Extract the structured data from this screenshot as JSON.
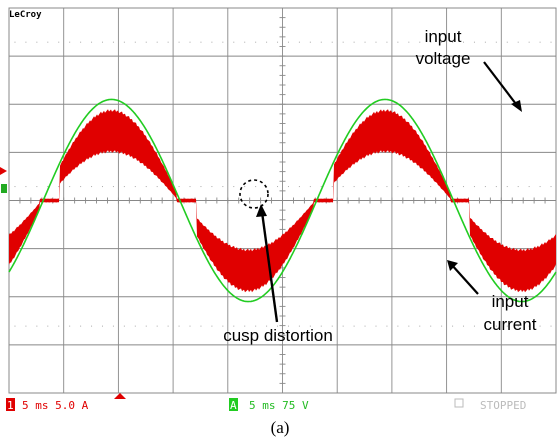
{
  "brand": "LeCroy",
  "caption": "(a)",
  "annotations": {
    "input_voltage": [
      "input",
      "voltage"
    ],
    "input_current": [
      "input",
      "current"
    ],
    "cusp": "cusp distortion"
  },
  "status": {
    "ch1_marker": "1",
    "ch1_text": "5 ms 5.0 A",
    "chA_marker": "A",
    "chA_text": "5 ms 75 V",
    "state": "STOPPED"
  },
  "colors": {
    "voltage": "#22cc22",
    "current": "#e00000",
    "grid": "#888888",
    "inactive": "#bbbbbb"
  },
  "chart_data": {
    "type": "line",
    "grid": {
      "divisions_x": 10,
      "divisions_y": 8
    },
    "time_per_div_ms": 5,
    "x_range_ms": [
      0,
      50
    ],
    "series": [
      {
        "name": "input voltage",
        "volts_per_div": 75,
        "frequency_hz": 40,
        "amplitude_div": 2.1,
        "phase_deg": -45
      },
      {
        "name": "input current",
        "amps_per_div": 5.0,
        "frequency_hz": 40,
        "amplitude_div": 1.45,
        "ripple_div": 0.42,
        "dead_zone_fraction": 0.06,
        "phase_deg": -45
      }
    ]
  }
}
